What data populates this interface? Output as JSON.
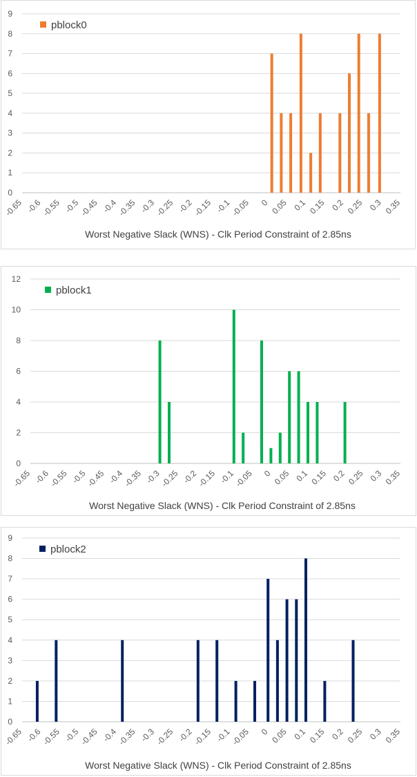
{
  "chart_data": [
    {
      "type": "bar",
      "legend": "pblock0",
      "color": "#ED7D31",
      "xlabel": "Worst Negative Slack (WNS) - Clk Period Constraint of 2.85ns",
      "ylabel": "",
      "ylim": [
        0,
        9
      ],
      "yticks": [
        "0",
        "1",
        "2",
        "3",
        "4",
        "5",
        "6",
        "7",
        "8",
        "9"
      ],
      "xticks": [
        "-0.65",
        "-0.6",
        "-0.55",
        "-0.5",
        "-0.45",
        "-0.4",
        "-0.35",
        "-0.3",
        "-0.25",
        "-0.2",
        "-0.15",
        "-0.1",
        "-0.05",
        "0",
        "0.05",
        "0.1",
        "0.15",
        "0.2",
        "0.25",
        "0.3",
        "0.35"
      ],
      "xlim": [
        -0.65,
        0.35
      ],
      "grid": true,
      "legend_position": "top-left",
      "points": [
        {
          "x": 0.01,
          "y": 7
        },
        {
          "x": 0.035,
          "y": 4
        },
        {
          "x": 0.06,
          "y": 4
        },
        {
          "x": 0.087,
          "y": 8
        },
        {
          "x": 0.113,
          "y": 2
        },
        {
          "x": 0.138,
          "y": 4
        },
        {
          "x": 0.19,
          "y": 4
        },
        {
          "x": 0.215,
          "y": 6
        },
        {
          "x": 0.24,
          "y": 8
        },
        {
          "x": 0.266,
          "y": 4
        },
        {
          "x": 0.295,
          "y": 8
        }
      ]
    },
    {
      "type": "bar",
      "legend": "pblock1",
      "color": "#00B050",
      "xlabel": "Worst Negative Slack (WNS) - Clk Period Constraint of 2.85ns",
      "ylabel": "",
      "ylim": [
        0,
        12
      ],
      "yticks": [
        "0",
        "2",
        "4",
        "6",
        "8",
        "10",
        "12"
      ],
      "xticks": [
        "-0.65",
        "-0.6",
        "-0.55",
        "-0.5",
        "-0.45",
        "-0.4",
        "-0.35",
        "-0.3",
        "-0.25",
        "-0.2",
        "-0.15",
        "-0.1",
        "-0.05",
        "0",
        "0.05",
        "0.1",
        "0.15",
        "0.2",
        "0.25",
        "0.3",
        "0.35"
      ],
      "xlim": [
        -0.65,
        0.35
      ],
      "grid": true,
      "legend_position": "top-left",
      "points": [
        {
          "x": -0.3,
          "y": 8
        },
        {
          "x": -0.275,
          "y": 4
        },
        {
          "x": -0.1,
          "y": 10
        },
        {
          "x": -0.075,
          "y": 2
        },
        {
          "x": -0.025,
          "y": 8
        },
        {
          "x": 0.0,
          "y": 1
        },
        {
          "x": 0.025,
          "y": 2
        },
        {
          "x": 0.05,
          "y": 6
        },
        {
          "x": 0.075,
          "y": 6
        },
        {
          "x": 0.1,
          "y": 4
        },
        {
          "x": 0.125,
          "y": 4
        },
        {
          "x": 0.2,
          "y": 4
        }
      ]
    },
    {
      "type": "bar",
      "legend": "pblock2",
      "color": "#002060",
      "xlabel": "Worst Negative Slack (WNS) - Clk Period Constraint of 2.85ns",
      "ylabel": "",
      "ylim": [
        0,
        9
      ],
      "yticks": [
        "0",
        "1",
        "2",
        "3",
        "4",
        "5",
        "6",
        "7",
        "8",
        "9"
      ],
      "xticks": [
        "-0.65",
        "-0.6",
        "-0.55",
        "-0.5",
        "-0.45",
        "-0.4",
        "-0.35",
        "-0.3",
        "-0.25",
        "-0.2",
        "-0.15",
        "-0.1",
        "-0.05",
        "0",
        "0.05",
        "0.1",
        "0.15",
        "0.2",
        "0.25",
        "0.3",
        "0.35"
      ],
      "xlim": [
        -0.65,
        0.35
      ],
      "grid": true,
      "legend_position": "top-left",
      "points": [
        {
          "x": -0.61,
          "y": 2
        },
        {
          "x": -0.56,
          "y": 4
        },
        {
          "x": -0.385,
          "y": 4
        },
        {
          "x": -0.185,
          "y": 4
        },
        {
          "x": -0.135,
          "y": 4
        },
        {
          "x": -0.085,
          "y": 2
        },
        {
          "x": -0.035,
          "y": 2
        },
        {
          "x": 0.0,
          "y": 7
        },
        {
          "x": 0.025,
          "y": 4
        },
        {
          "x": 0.05,
          "y": 6
        },
        {
          "x": 0.075,
          "y": 6
        },
        {
          "x": 0.1,
          "y": 8
        },
        {
          "x": 0.15,
          "y": 2
        },
        {
          "x": 0.225,
          "y": 4
        }
      ]
    }
  ]
}
